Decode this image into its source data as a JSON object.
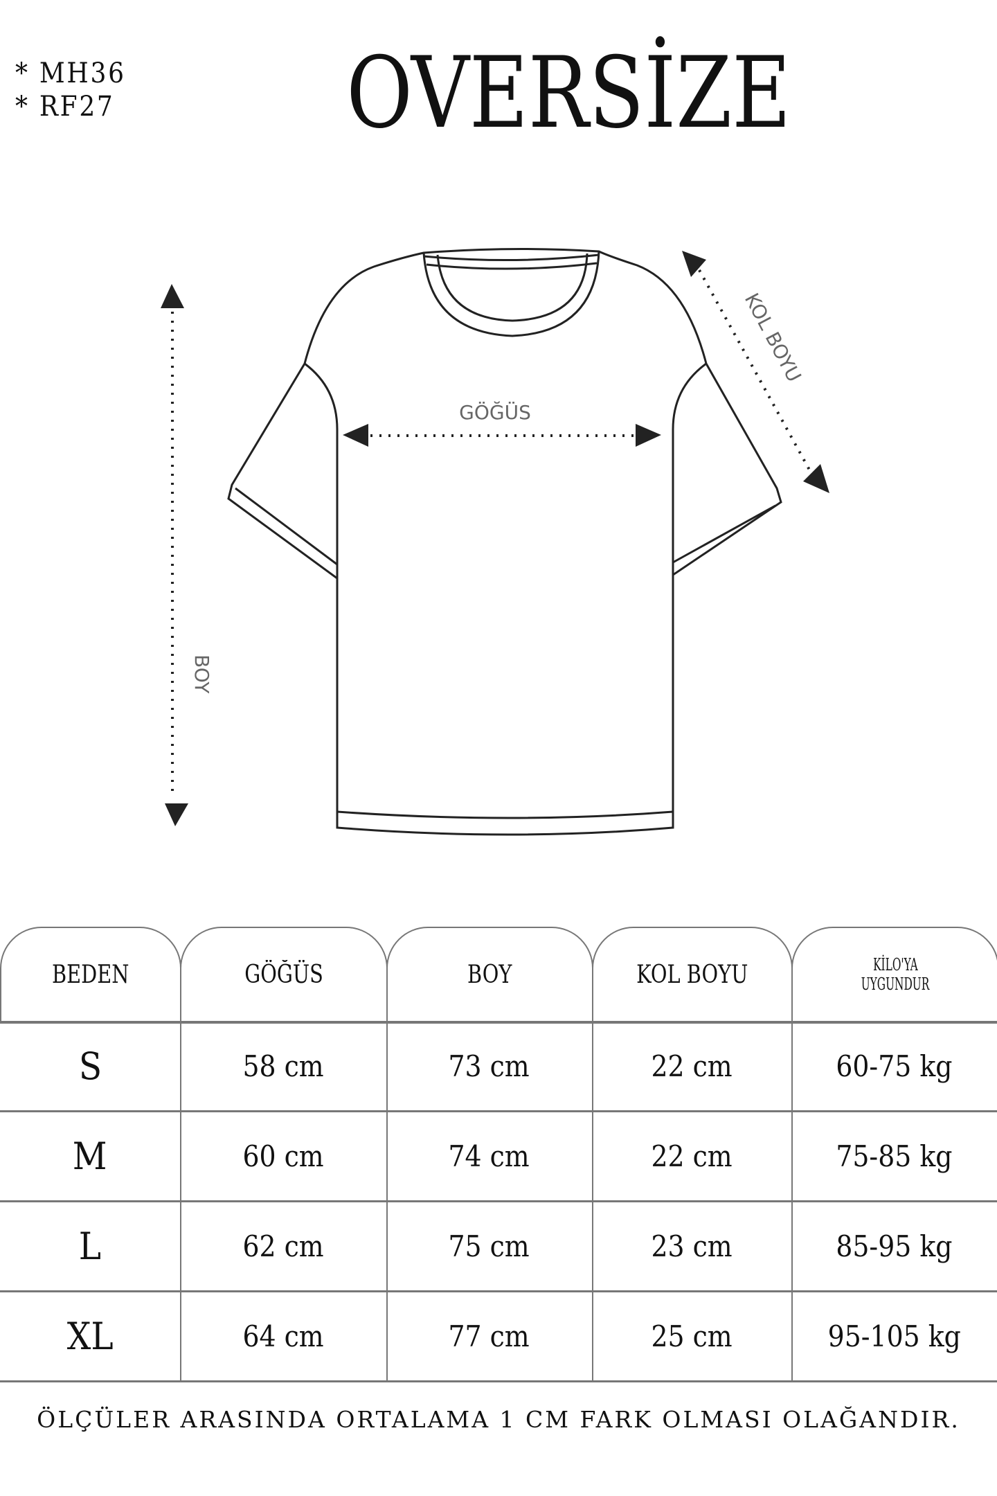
{
  "codes": [
    "*  MH36",
    "*  RF27"
  ],
  "title": "OVERSİZE",
  "diagram": {
    "chest_label": "GÖĞÜS",
    "length_label": "BOY",
    "sleeve_label": "KOL BOYU"
  },
  "table": {
    "headers": [
      "BEDEN",
      "GÖĞÜS",
      "BOY",
      "KOL BOYU",
      "KİLO'YA UYGUNDUR"
    ],
    "header_kilo_lines": [
      "KİLO'YA",
      "UYGUNDUR"
    ],
    "rows": [
      [
        "S",
        "58 cm",
        "73 cm",
        "22  cm",
        "60-75 kg"
      ],
      [
        "M",
        "60 cm",
        "74 cm",
        "22 cm",
        "75-85 kg"
      ],
      [
        "L",
        "62 cm",
        "75 cm",
        "23 cm",
        "85-95 kg"
      ],
      [
        "XL",
        "64 cm",
        "77 cm",
        "25 cm",
        "95-105 kg"
      ]
    ]
  },
  "footer": "ÖLÇÜLER ARASINDA ORTALAMA 1 CM FARK OLMASI OLAĞANDIR."
}
